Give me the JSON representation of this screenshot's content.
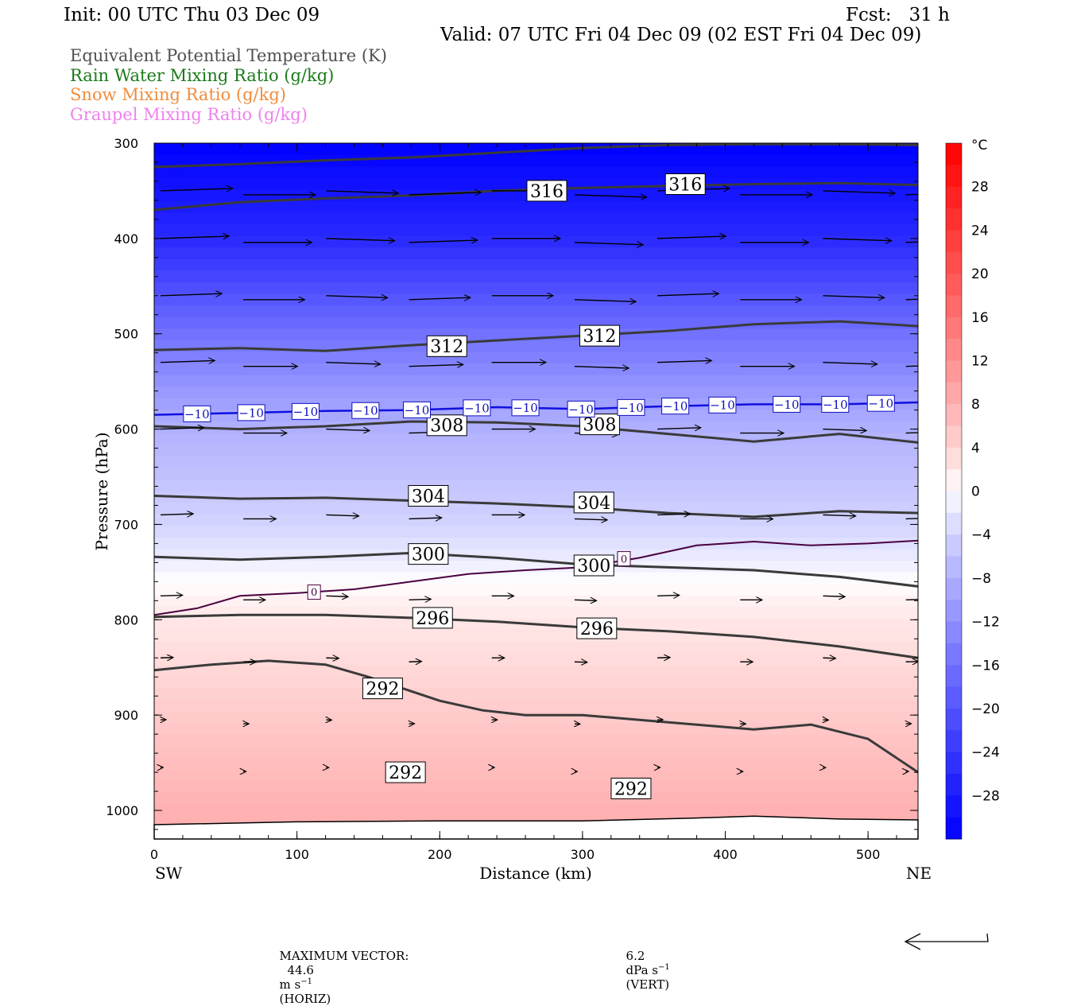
{
  "header": {
    "init": "Init: 00 UTC Thu 03 Dec 09",
    "fcst": "Fcst:   31 h",
    "valid": "Valid: 07 UTC Fri 04 Dec 09 (02 EST Fri 04 Dec 09)"
  },
  "legend": [
    {
      "label": "Equivalent Potential Temperature (K)",
      "color": "#505050"
    },
    {
      "label": "Rain Water Mixing Ratio (g/kg)",
      "color": "#1a7a1a"
    },
    {
      "label": "Snow Mixing Ratio (g/kg)",
      "color": "#f08c3c"
    },
    {
      "label": "Graupel Mixing Ratio (g/kg)",
      "color": "#ee82ee"
    }
  ],
  "chart_data": {
    "type": "contour",
    "xlabel": "Distance (km)",
    "ylabel": "Pressure (hPa)",
    "x_ticks": [
      0,
      100,
      200,
      300,
      400,
      500
    ],
    "x_tick_labels": [
      "0",
      "100",
      "200",
      "300",
      "400",
      "500"
    ],
    "y_ticks": [
      300,
      400,
      500,
      600,
      700,
      800,
      900,
      1000
    ],
    "y_tick_labels": [
      "300",
      "400",
      "500",
      "600",
      "700",
      "800",
      "900",
      "1000"
    ],
    "xlim": [
      0,
      535
    ],
    "ylim": [
      300,
      1030
    ],
    "y_inverted": true,
    "left_end_label": "SW",
    "right_end_label": "NE",
    "colorbar": {
      "unit": "°C",
      "range": [
        -32,
        32
      ],
      "tick_values": [
        28,
        24,
        20,
        16,
        12,
        8,
        4,
        0,
        -4,
        -8,
        -12,
        -16,
        -20,
        -24,
        -28
      ],
      "tick_labels": [
        "28",
        "24",
        "20",
        "16",
        "12",
        "8",
        "4",
        "0",
        "−4",
        "−8",
        "−12",
        "−16",
        "−20",
        "−24",
        "−28"
      ],
      "cold_color": "#0000ff",
      "warm_color": "#ff0000"
    },
    "temperature_profile": {
      "pressure": [
        300,
        400,
        500,
        560,
        600,
        700,
        760,
        800,
        900,
        1000
      ],
      "temp_c": [
        -32,
        -26,
        -16,
        -11,
        -8,
        -4,
        0,
        2,
        5,
        8
      ]
    },
    "theta_e_contours": [
      {
        "level": 292,
        "x": [
          0,
          40,
          80,
          120,
          150,
          180,
          200,
          230,
          260,
          300,
          340,
          380,
          420,
          460,
          500,
          535
        ],
        "p": [
          853,
          847,
          843,
          847,
          860,
          875,
          885,
          895,
          900,
          900,
          905,
          910,
          915,
          910,
          925,
          960
        ]
      },
      {
        "level": 296,
        "x": [
          0,
          60,
          120,
          180,
          240,
          300,
          360,
          420,
          480,
          535
        ],
        "p": [
          797,
          795,
          795,
          798,
          802,
          808,
          812,
          818,
          828,
          840
        ]
      },
      {
        "level": 300,
        "x": [
          0,
          60,
          120,
          180,
          240,
          300,
          360,
          420,
          480,
          535
        ],
        "p": [
          734,
          737,
          734,
          730,
          735,
          742,
          745,
          748,
          755,
          765
        ]
      },
      {
        "level": 304,
        "x": [
          0,
          60,
          120,
          180,
          240,
          300,
          360,
          420,
          480,
          535
        ],
        "p": [
          670,
          673,
          672,
          675,
          678,
          682,
          688,
          692,
          686,
          688
        ]
      },
      {
        "level": 308,
        "x": [
          0,
          60,
          120,
          180,
          240,
          300,
          360,
          420,
          480,
          535
        ],
        "p": [
          597,
          600,
          597,
          592,
          593,
          597,
          605,
          613,
          605,
          614
        ]
      },
      {
        "level": 312,
        "x": [
          0,
          60,
          120,
          180,
          240,
          300,
          360,
          420,
          480,
          535
        ],
        "p": [
          517,
          515,
          518,
          512,
          507,
          502,
          497,
          490,
          487,
          492
        ]
      },
      {
        "level": 316,
        "x": [
          0,
          60,
          120,
          180,
          240,
          300,
          360,
          420,
          480,
          535
        ],
        "p": [
          370,
          362,
          358,
          355,
          350,
          347,
          345,
          343,
          342,
          344
        ]
      },
      {
        "level": 320,
        "x": [
          0,
          60,
          120,
          180,
          240,
          300,
          360,
          420,
          480,
          535
        ],
        "p": [
          325,
          322,
          318,
          315,
          310,
          305,
          302,
          301,
          301,
          302
        ]
      }
    ],
    "theta_e_labels": [
      {
        "text": "316",
        "x": 275,
        "p": 350
      },
      {
        "text": "316",
        "x": 372,
        "p": 343
      },
      {
        "text": "312",
        "x": 205,
        "p": 513
      },
      {
        "text": "312",
        "x": 312,
        "p": 502
      },
      {
        "text": "308",
        "x": 205,
        "p": 596
      },
      {
        "text": "308",
        "x": 312,
        "p": 595
      },
      {
        "text": "304",
        "x": 192,
        "p": 670
      },
      {
        "text": "304",
        "x": 308,
        "p": 677
      },
      {
        "text": "300",
        "x": 192,
        "p": 731
      },
      {
        "text": "300",
        "x": 308,
        "p": 743
      },
      {
        "text": "296",
        "x": 195,
        "p": 798
      },
      {
        "text": "296",
        "x": 310,
        "p": 809
      },
      {
        "text": "292",
        "x": 160,
        "p": 872
      },
      {
        "text": "292",
        "x": 176,
        "p": 960
      },
      {
        "text": "292",
        "x": 334,
        "p": 977
      }
    ],
    "isotherm_minus10": {
      "x": [
        0,
        60,
        120,
        180,
        240,
        300,
        360,
        420,
        480,
        535
      ],
      "p": [
        585,
        583,
        581,
        580,
        577,
        579,
        576,
        574,
        574,
        572
      ],
      "label_x": [
        30,
        68,
        106,
        148,
        184,
        226,
        260,
        299,
        334,
        365,
        398,
        443,
        477,
        509
      ],
      "label_text": "−10"
    },
    "isotherm_0": {
      "x": [
        0,
        30,
        60,
        100,
        140,
        180,
        220,
        260,
        300,
        340,
        380,
        420,
        460,
        500,
        535
      ],
      "p": [
        795,
        788,
        775,
        772,
        768,
        760,
        752,
        748,
        745,
        735,
        722,
        718,
        722,
        720,
        717
      ],
      "labels": [
        {
          "x": 112,
          "p": 771
        },
        {
          "x": 329,
          "p": 736
        }
      ]
    },
    "wind_vectors": {
      "x": [
        0,
        58,
        116,
        174,
        232,
        290,
        348,
        406,
        464,
        522
      ],
      "levels": [
        350,
        400,
        460,
        530,
        600,
        690,
        775,
        840,
        905,
        955
      ],
      "u_scale": [
        1.0,
        0.95,
        0.85,
        0.75,
        0.6,
        0.45,
        0.3,
        0.17,
        0.07,
        0.03
      ]
    },
    "max_vector": {
      "label": "MAXIMUM VECTOR:",
      "horiz_value": "44.6",
      "horiz_unit": "m s",
      "horiz_exp": "−1",
      "horiz_tag": "(HORIZ)",
      "vert_value": "6.2",
      "vert_unit": "dPa s",
      "vert_exp": "−1",
      "vert_tag": "(VERT)"
    }
  }
}
